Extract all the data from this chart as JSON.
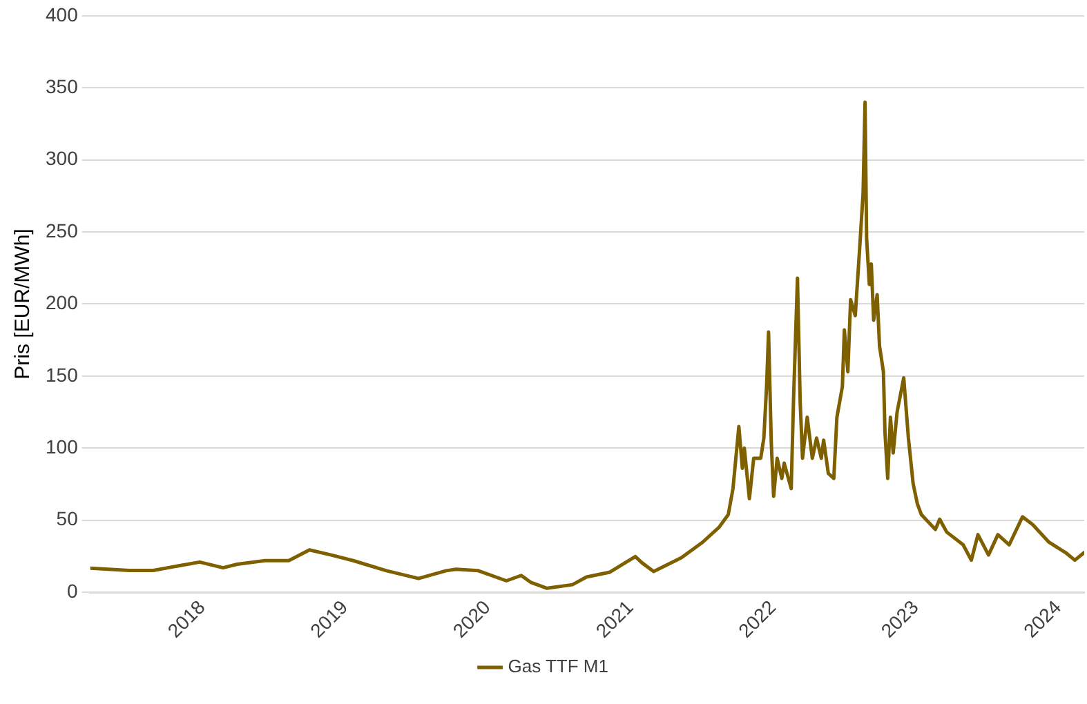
{
  "chart_data": {
    "type": "line",
    "ylabel": "Pris [EUR/MWh]",
    "legend": "bottom",
    "grid": "y",
    "marker": "none",
    "line_style": "solid",
    "ylim": [
      0,
      400
    ],
    "yticks": [
      0,
      50,
      100,
      150,
      200,
      250,
      300,
      350,
      400
    ],
    "xlim": [
      "2017-03-20",
      "2024-03-07"
    ],
    "xticks": [
      "2018",
      "2019",
      "2020",
      "2021",
      "2022",
      "2023",
      "2024"
    ],
    "x": [
      "2017-03-20",
      "2017-06-28",
      "2017-08-28",
      "2017-12-25",
      "2018-02-23",
      "2018-03-31",
      "2018-06-10",
      "2018-08-10",
      "2018-10-02",
      "2018-11-25",
      "2019-01-22",
      "2019-04-17",
      "2019-07-08",
      "2019-09-17",
      "2019-10-12",
      "2019-12-08",
      "2020-02-18",
      "2020-03-27",
      "2020-04-20",
      "2020-06-01",
      "2020-08-05",
      "2020-09-10",
      "2020-11-09",
      "2021-01-13",
      "2021-01-30",
      "2021-03-01",
      "2021-05-11",
      "2021-07-04",
      "2021-08-15",
      "2021-09-08",
      "2021-09-20",
      "2021-10-05",
      "2021-10-14",
      "2021-10-19",
      "2021-11-01",
      "2021-11-12",
      "2021-11-30",
      "2021-12-08",
      "2021-12-15",
      "2021-12-20",
      "2021-12-27",
      "2022-01-02",
      "2022-01-11",
      "2022-01-23",
      "2022-01-29",
      "2022-02-16",
      "2022-02-22",
      "2022-03-04",
      "2022-03-11",
      "2022-03-17",
      "2022-03-29",
      "2022-04-11",
      "2022-04-22",
      "2022-05-04",
      "2022-05-10",
      "2022-05-22",
      "2022-06-05",
      "2022-06-13",
      "2022-06-27",
      "2022-07-02",
      "2022-07-11",
      "2022-07-18",
      "2022-07-30",
      "2022-08-11",
      "2022-08-19",
      "2022-08-24",
      "2022-08-28",
      "2022-09-04",
      "2022-09-09",
      "2022-09-15",
      "2022-09-24",
      "2022-09-30",
      "2022-10-10",
      "2022-10-14",
      "2022-10-21",
      "2022-10-28",
      "2022-11-04",
      "2022-11-14",
      "2022-12-01",
      "2022-12-13",
      "2022-12-25",
      "2023-01-05",
      "2023-01-15",
      "2023-02-20",
      "2023-03-03",
      "2023-03-21",
      "2023-05-02",
      "2023-05-23",
      "2023-06-09",
      "2023-07-06",
      "2023-07-30",
      "2023-08-28",
      "2023-10-01",
      "2023-10-27",
      "2023-12-08",
      "2024-01-19",
      "2024-02-12",
      "2024-03-07"
    ],
    "series": [
      {
        "name": "Gas TTF M1",
        "color": "#7f6000",
        "values": [
          16.7,
          15.2,
          15.2,
          21,
          17,
          19.5,
          22,
          22,
          29.4,
          26,
          22,
          15,
          9.6,
          15,
          16,
          15,
          8,
          11.7,
          7,
          2.8,
          5.3,
          10.6,
          14,
          24.8,
          20.5,
          14.5,
          24,
          34.7,
          45,
          54,
          72,
          115,
          86,
          100,
          65,
          93,
          93,
          107,
          143,
          180.6,
          104,
          66.6,
          93,
          79,
          89.6,
          72,
          134,
          218,
          132,
          93,
          121.5,
          93,
          107,
          93,
          105.6,
          82.5,
          79,
          121.5,
          142.8,
          182,
          153,
          203,
          192,
          242,
          277,
          340,
          245.5,
          213.6,
          227.8,
          188.8,
          206.5,
          171,
          153,
          111,
          79,
          121.5,
          96.7,
          125,
          148.8,
          107,
          75.5,
          61.3,
          54,
          43.6,
          50.7,
          41.8,
          33,
          22.3,
          40,
          25.9,
          40,
          33,
          52.4,
          47,
          34.7,
          27.6,
          22.3,
          27.6
        ]
      }
    ]
  }
}
